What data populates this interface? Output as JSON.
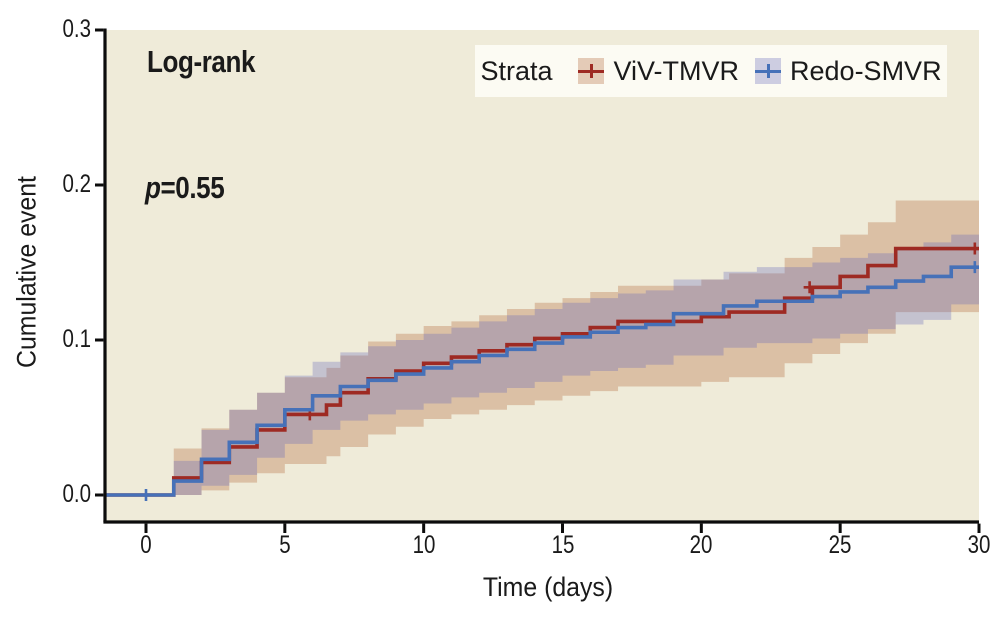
{
  "figure": {
    "annotations": {
      "stat_test": "Log-rank",
      "p_prefix": "p",
      "p_suffix": "=0.55"
    },
    "axes": {
      "x": {
        "label": "Time (days)",
        "tick_labels": [
          "0",
          "5",
          "10",
          "15",
          "20",
          "25",
          "30"
        ],
        "tick_values": [
          0,
          5,
          10,
          15,
          20,
          25,
          30
        ],
        "range": [
          -1.48,
          30
        ]
      },
      "y": {
        "label": "Cumulative event",
        "tick_labels": [
          "0.0",
          "0.1",
          "0.2",
          "0.3"
        ],
        "tick_values": [
          0,
          0.1,
          0.2,
          0.3
        ],
        "range": [
          -0.017,
          0.3
        ]
      }
    },
    "legend": {
      "title": "Strata"
    }
  },
  "chart_data": {
    "type": "line",
    "subtype": "kaplan-meier-cumulative-incidence-step",
    "title": "",
    "xlabel": "Time (days)",
    "ylabel": "Cumulative event",
    "xlim": [
      -1.48,
      30
    ],
    "ylim": [
      -0.017,
      0.3
    ],
    "grid": false,
    "legend_position": "top-right",
    "annotations": [
      "Log-rank",
      "p=0.55"
    ],
    "colors": {
      "plot_bg": "#efebd9",
      "axis": "#0c0c0c",
      "legend_bg": "#fcfbf3",
      "viv_line": "#9e2a23",
      "redo_line": "#4671b8",
      "viv_band_rgba": "rgba(173,93,48,0.30)",
      "redo_band_rgba": "rgba(97,99,185,0.30)"
    },
    "series": [
      {
        "name": "ViV-TMVR",
        "color": "#9e2a23",
        "band_color": "rgba(173,93,48,0.30)",
        "start": [
          -1.48,
          0
        ],
        "steps": [
          [
            1,
            0.011
          ],
          [
            2,
            0.021
          ],
          [
            3,
            0.031
          ],
          [
            4,
            0.042
          ],
          [
            5,
            0.052
          ],
          [
            6.5,
            0.058
          ],
          [
            7,
            0.066
          ],
          [
            8,
            0.075
          ],
          [
            9,
            0.08
          ],
          [
            10,
            0.085
          ],
          [
            11,
            0.089
          ],
          [
            12,
            0.093
          ],
          [
            13,
            0.097
          ],
          [
            14,
            0.101
          ],
          [
            15,
            0.104
          ],
          [
            16,
            0.108
          ],
          [
            17,
            0.112
          ],
          [
            20,
            0.115
          ],
          [
            21,
            0.118
          ],
          [
            23,
            0.127
          ],
          [
            24,
            0.134
          ],
          [
            25,
            0.141
          ],
          [
            26,
            0.148
          ],
          [
            27,
            0.159
          ]
        ],
        "end_time": 30,
        "censors": [
          [
            5.9,
            0.052
          ],
          [
            23.9,
            0.134
          ],
          [
            29.85,
            0.159
          ]
        ],
        "band": [
          [
            1,
            0.0,
            0.03
          ],
          [
            2,
            0.003,
            0.043
          ],
          [
            3,
            0.008,
            0.055
          ],
          [
            4,
            0.014,
            0.066
          ],
          [
            5,
            0.02,
            0.076
          ],
          [
            6.5,
            0.025,
            0.082
          ],
          [
            7,
            0.031,
            0.09
          ],
          [
            8,
            0.039,
            0.099
          ],
          [
            9,
            0.044,
            0.104
          ],
          [
            10,
            0.049,
            0.109
          ],
          [
            11,
            0.052,
            0.112
          ],
          [
            12,
            0.055,
            0.116
          ],
          [
            13,
            0.058,
            0.12
          ],
          [
            14,
            0.061,
            0.124
          ],
          [
            15,
            0.064,
            0.127
          ],
          [
            16,
            0.067,
            0.131
          ],
          [
            17,
            0.07,
            0.135
          ],
          [
            20,
            0.073,
            0.139
          ],
          [
            21,
            0.076,
            0.143
          ],
          [
            23,
            0.085,
            0.153
          ],
          [
            24,
            0.091,
            0.16
          ],
          [
            25,
            0.098,
            0.168
          ],
          [
            26,
            0.104,
            0.176
          ],
          [
            27,
            0.118,
            0.19
          ]
        ]
      },
      {
        "name": "Redo-SMVR",
        "color": "#4671b8",
        "band_color": "rgba(97,99,185,0.30)",
        "start": [
          -1.48,
          0
        ],
        "steps": [
          [
            1,
            0.009
          ],
          [
            2,
            0.023
          ],
          [
            3,
            0.034
          ],
          [
            4,
            0.045
          ],
          [
            5,
            0.055
          ],
          [
            6,
            0.064
          ],
          [
            7,
            0.07
          ],
          [
            8,
            0.074
          ],
          [
            9,
            0.078
          ],
          [
            10,
            0.082
          ],
          [
            11,
            0.086
          ],
          [
            12,
            0.09
          ],
          [
            13,
            0.094
          ],
          [
            14,
            0.098
          ],
          [
            15,
            0.102
          ],
          [
            16,
            0.105
          ],
          [
            17,
            0.108
          ],
          [
            18,
            0.11
          ],
          [
            19,
            0.117
          ],
          [
            20.8,
            0.122
          ],
          [
            22,
            0.125
          ],
          [
            24,
            0.128
          ],
          [
            25,
            0.131
          ],
          [
            26,
            0.134
          ],
          [
            27,
            0.138
          ],
          [
            28,
            0.141
          ],
          [
            29,
            0.147
          ]
        ],
        "end_time": 30,
        "censors": [
          [
            0,
            0
          ],
          [
            29.85,
            0.147
          ]
        ],
        "band": [
          [
            1,
            0.0,
            0.022
          ],
          [
            2,
            0.006,
            0.042
          ],
          [
            3,
            0.013,
            0.055
          ],
          [
            4,
            0.024,
            0.066
          ],
          [
            5,
            0.033,
            0.077
          ],
          [
            6,
            0.042,
            0.086
          ],
          [
            7,
            0.048,
            0.092
          ],
          [
            8,
            0.052,
            0.096
          ],
          [
            9,
            0.055,
            0.1
          ],
          [
            10,
            0.059,
            0.104
          ],
          [
            11,
            0.063,
            0.108
          ],
          [
            12,
            0.066,
            0.112
          ],
          [
            13,
            0.069,
            0.116
          ],
          [
            14,
            0.073,
            0.12
          ],
          [
            15,
            0.077,
            0.124
          ],
          [
            16,
            0.08,
            0.127
          ],
          [
            17,
            0.082,
            0.13
          ],
          [
            18,
            0.084,
            0.132
          ],
          [
            19,
            0.09,
            0.139
          ],
          [
            20.8,
            0.095,
            0.144
          ],
          [
            22,
            0.098,
            0.147
          ],
          [
            24,
            0.101,
            0.15
          ],
          [
            25,
            0.104,
            0.153
          ],
          [
            26,
            0.107,
            0.156
          ],
          [
            27,
            0.11,
            0.16
          ],
          [
            28,
            0.113,
            0.163
          ],
          [
            29,
            0.123,
            0.168
          ]
        ]
      }
    ]
  }
}
